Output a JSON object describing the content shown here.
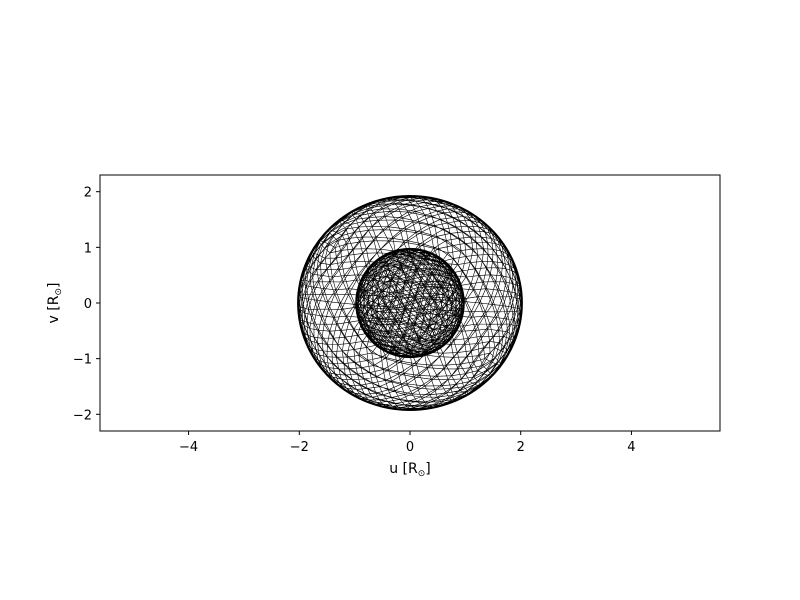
{
  "chart_data": {
    "type": "mesh",
    "title": "",
    "xlabel": "u [R",
    "xlabel_sub": "⊙",
    "xlabel_end": "]",
    "ylabel": "v [R",
    "ylabel_sub": "⊙",
    "ylabel_end": "]",
    "xlim": [
      -5.6,
      5.6
    ],
    "ylim": [
      -2.3,
      2.3
    ],
    "xticks": [
      -4,
      -2,
      0,
      2,
      4
    ],
    "xtick_labels": [
      "−4",
      "−2",
      "0",
      "2",
      "4"
    ],
    "yticks": [
      -2,
      -1,
      0,
      1,
      2
    ],
    "ytick_labels": [
      "−2",
      "−1",
      "0",
      "1",
      "2"
    ],
    "grid": false,
    "line_color": "#000000",
    "bodies": [
      {
        "center": [
          0,
          0
        ],
        "radius": 1.0,
        "rx": 0.97,
        "ry": 0.97,
        "mesh": "triangular"
      },
      {
        "center": [
          0,
          0
        ],
        "radius": 1.92,
        "rx": 2.02,
        "ry": 1.92,
        "mesh": "triangular"
      }
    ]
  }
}
